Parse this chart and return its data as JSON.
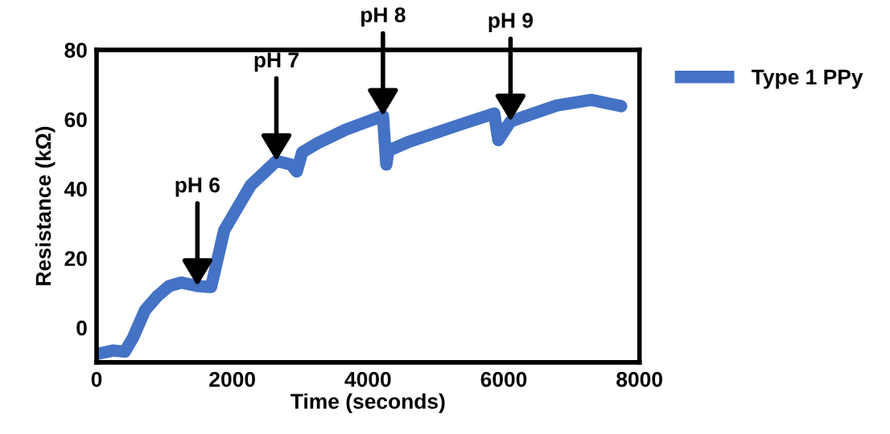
{
  "chart_data": {
    "type": "line",
    "xlabel": "Time (seconds)",
    "ylabel": "Resistance (kΩ)",
    "xlim": [
      0,
      8000
    ],
    "ylim": [
      -10,
      80
    ],
    "xticks": [
      0,
      2000,
      4000,
      6000,
      8000
    ],
    "yticks": [
      0,
      20,
      40,
      60,
      80
    ],
    "grid": false,
    "legend": "top right",
    "line_style": "solid",
    "series": [
      {
        "name": "Type 1 PPy",
        "color": "#4472c4",
        "x": [
          24,
          238,
          416,
          535,
          713,
          892,
          1070,
          1248,
          1486,
          1688,
          1760,
          1880,
          2270,
          2650,
          2865,
          2950,
          3030,
          3245,
          3670,
          4220,
          4270,
          4300,
          4600,
          5390,
          5860,
          5920,
          6100,
          6780,
          7290,
          7730
        ],
        "values": [
          -7.5,
          -6.6,
          -6.9,
          -3,
          5,
          9,
          12,
          13,
          12,
          11.7,
          17.8,
          28,
          41,
          48,
          47,
          45,
          50.5,
          53,
          57,
          61,
          47,
          51,
          53.5,
          58.7,
          61.7,
          54,
          59.4,
          64,
          65.6,
          63.8
        ]
      }
    ],
    "annotations": [
      {
        "text": "pH 6",
        "x": 1486,
        "y": 12
      },
      {
        "text": "pH 7",
        "x": 2650,
        "y": 48
      },
      {
        "text": "pH 8",
        "x": 4220,
        "y": 61
      },
      {
        "text": "pH 9",
        "x": 6100,
        "y": 59.4
      }
    ]
  }
}
